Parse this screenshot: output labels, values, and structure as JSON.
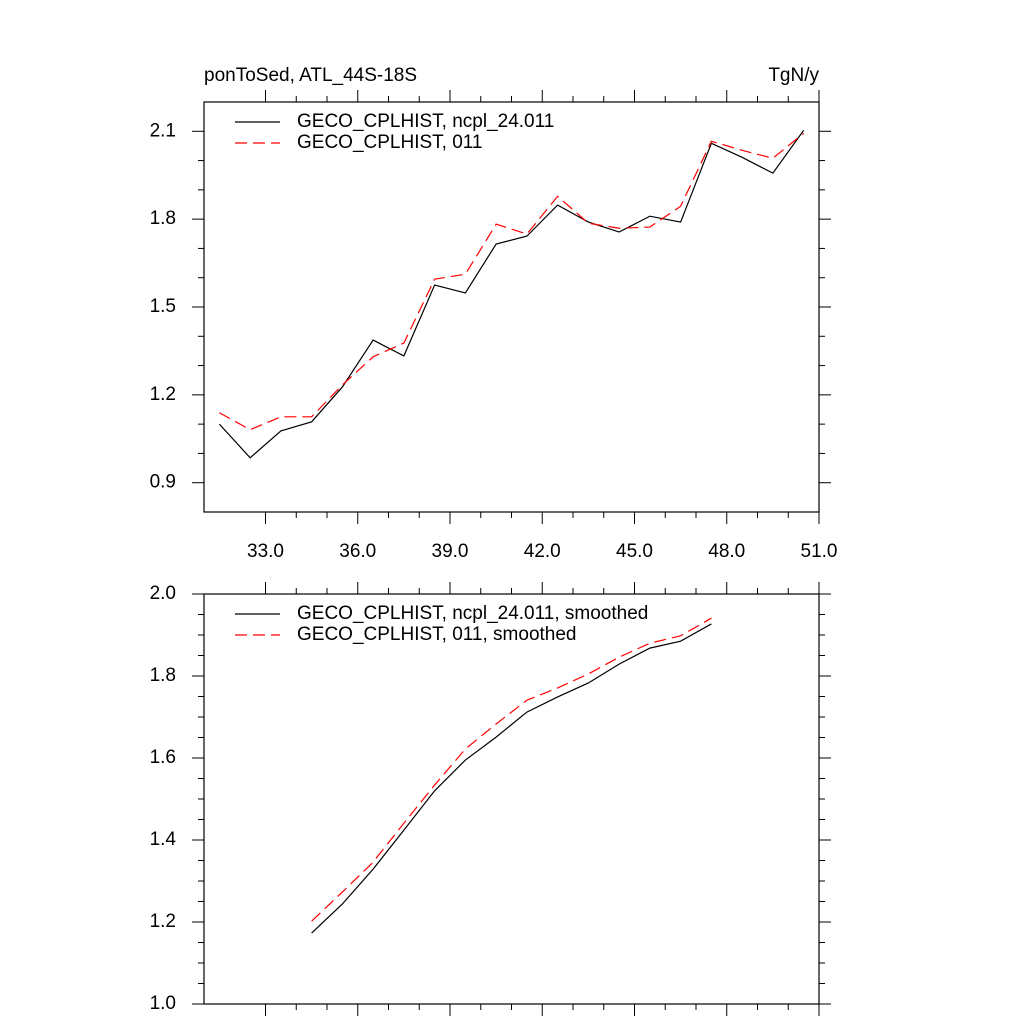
{
  "chart_data": [
    {
      "type": "line",
      "title": "ponToSed, ATL_44S-18S",
      "units": "TgN/y",
      "x": [
        31.5,
        32.5,
        33.5,
        34.5,
        35.5,
        36.5,
        37.5,
        38.5,
        39.5,
        40.5,
        41.5,
        42.5,
        43.5,
        44.5,
        45.5,
        46.5,
        47.5,
        48.5,
        49.5,
        50.5
      ],
      "series": [
        {
          "name": "GECO_CPLHIST, ncpl_24.011",
          "color": "#000000",
          "dashed": false,
          "values": [
            1.1,
            0.985,
            1.077,
            1.108,
            1.227,
            1.387,
            1.333,
            1.575,
            1.548,
            1.715,
            1.742,
            1.848,
            1.79,
            1.756,
            1.81,
            1.79,
            2.059,
            2.011,
            1.957,
            2.103
          ]
        },
        {
          "name": "GECO_CPLHIST, 011",
          "color": "#ff0000",
          "dashed": true,
          "values": [
            1.139,
            1.081,
            1.125,
            1.125,
            1.234,
            1.33,
            1.377,
            1.595,
            1.612,
            1.783,
            1.749,
            1.878,
            1.786,
            1.769,
            1.773,
            1.844,
            2.066,
            2.035,
            2.008,
            2.093
          ]
        }
      ],
      "xlim": [
        31,
        51
      ],
      "xticks": [
        {
          "value": 33,
          "label": "33.0"
        },
        {
          "value": 36,
          "label": "36.0"
        },
        {
          "value": 39,
          "label": "39.0"
        },
        {
          "value": 42,
          "label": "42.0"
        },
        {
          "value": 45,
          "label": "45.0"
        },
        {
          "value": 48,
          "label": "48.0"
        },
        {
          "value": 51,
          "label": "51.0"
        }
      ],
      "ylim": [
        0.8,
        2.2
      ],
      "yticks": [
        0.9,
        1.2,
        1.5,
        1.8,
        2.1
      ]
    },
    {
      "type": "line",
      "x": [
        34.5,
        35.5,
        36.5,
        37.5,
        38.5,
        39.5,
        40.5,
        41.5,
        42.5,
        43.5,
        44.5,
        45.5,
        46.5,
        47.5
      ],
      "series": [
        {
          "name": "GECO_CPLHIST, ncpl_24.011, smoothed",
          "color": "#000000",
          "dashed": false,
          "values": [
            1.173,
            1.244,
            1.329,
            1.424,
            1.52,
            1.595,
            1.651,
            1.712,
            1.749,
            1.783,
            1.829,
            1.868,
            1.885,
            1.927
          ]
        },
        {
          "name": "GECO_CPLHIST, 011, smoothed",
          "color": "#ff0000",
          "dashed": true,
          "values": [
            1.202,
            1.273,
            1.346,
            1.441,
            1.534,
            1.622,
            1.683,
            1.741,
            1.771,
            1.805,
            1.846,
            1.88,
            1.898,
            1.941
          ]
        }
      ],
      "xlim": [
        31,
        51
      ],
      "xticks": [
        33,
        36,
        39,
        42,
        45,
        48,
        51
      ],
      "ylim": [
        1,
        2
      ],
      "yticks": [
        {
          "value": 1,
          "label": "1.0"
        },
        1.2,
        1.4,
        1.6,
        1.8,
        {
          "value": 2,
          "label": "2.0"
        }
      ]
    }
  ]
}
